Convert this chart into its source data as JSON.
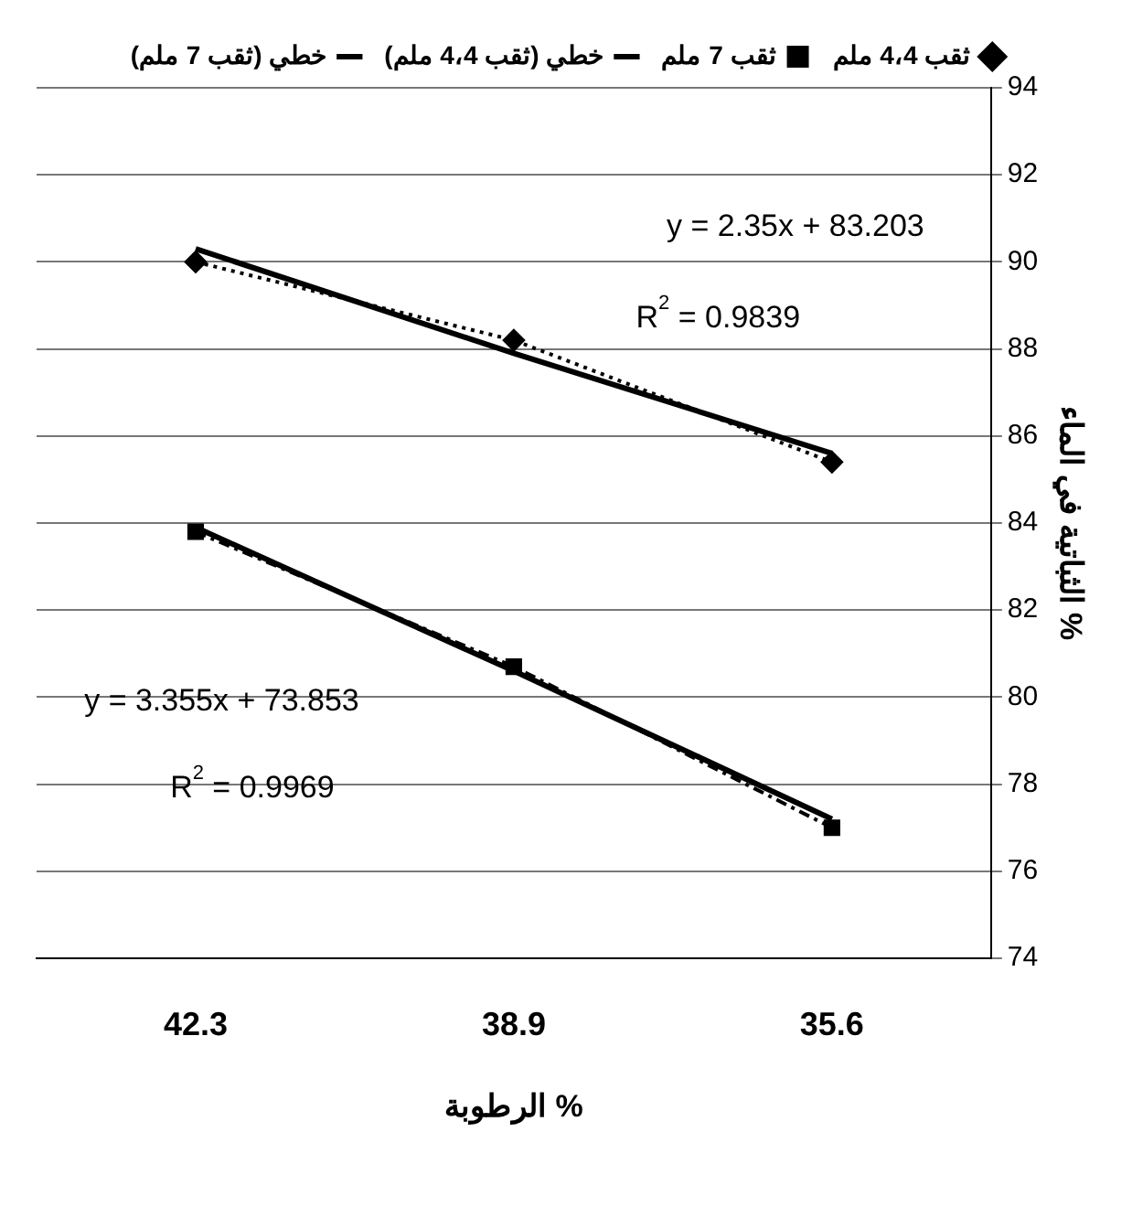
{
  "chart_data": {
    "type": "line",
    "xlabel": "الرطوبة %",
    "ylabel": "الثباتية في الماء %",
    "categories": [
      "42.3",
      "38.9",
      "35.6"
    ],
    "series": [
      {
        "name": "ثقب 4،4 ملم",
        "color": "#000000",
        "values": [
          90.0,
          88.2,
          85.4
        ],
        "marker": "diamond",
        "line_style": "dotted"
      },
      {
        "name": "ثقب 7 ملم",
        "color": "#000000",
        "values": [
          83.8,
          80.7,
          77.0
        ],
        "marker": "square",
        "line_style": "dashed"
      },
      {
        "name": "خطي (ثقب 4،4 ملم)",
        "color": "#000000",
        "values": [
          90.3,
          87.9,
          85.6
        ],
        "marker": "none",
        "line_style": "solid"
      },
      {
        "name": "خطي (ثقب 7 ملم)",
        "color": "#000000",
        "values": [
          83.9,
          80.6,
          77.2
        ],
        "marker": "none",
        "line_style": "solid"
      }
    ],
    "ylim": [
      74,
      94
    ],
    "yticks": [
      74,
      76,
      78,
      80,
      82,
      84,
      86,
      88,
      90,
      92,
      94
    ],
    "grid": "y",
    "legend": "top",
    "annotations": [
      "y = 2.35x + 83.203",
      "R$^{2}$ = 0.9839",
      "y = 3.355x + 73.853",
      "R$^{2}$ = 0.9969"
    ]
  }
}
